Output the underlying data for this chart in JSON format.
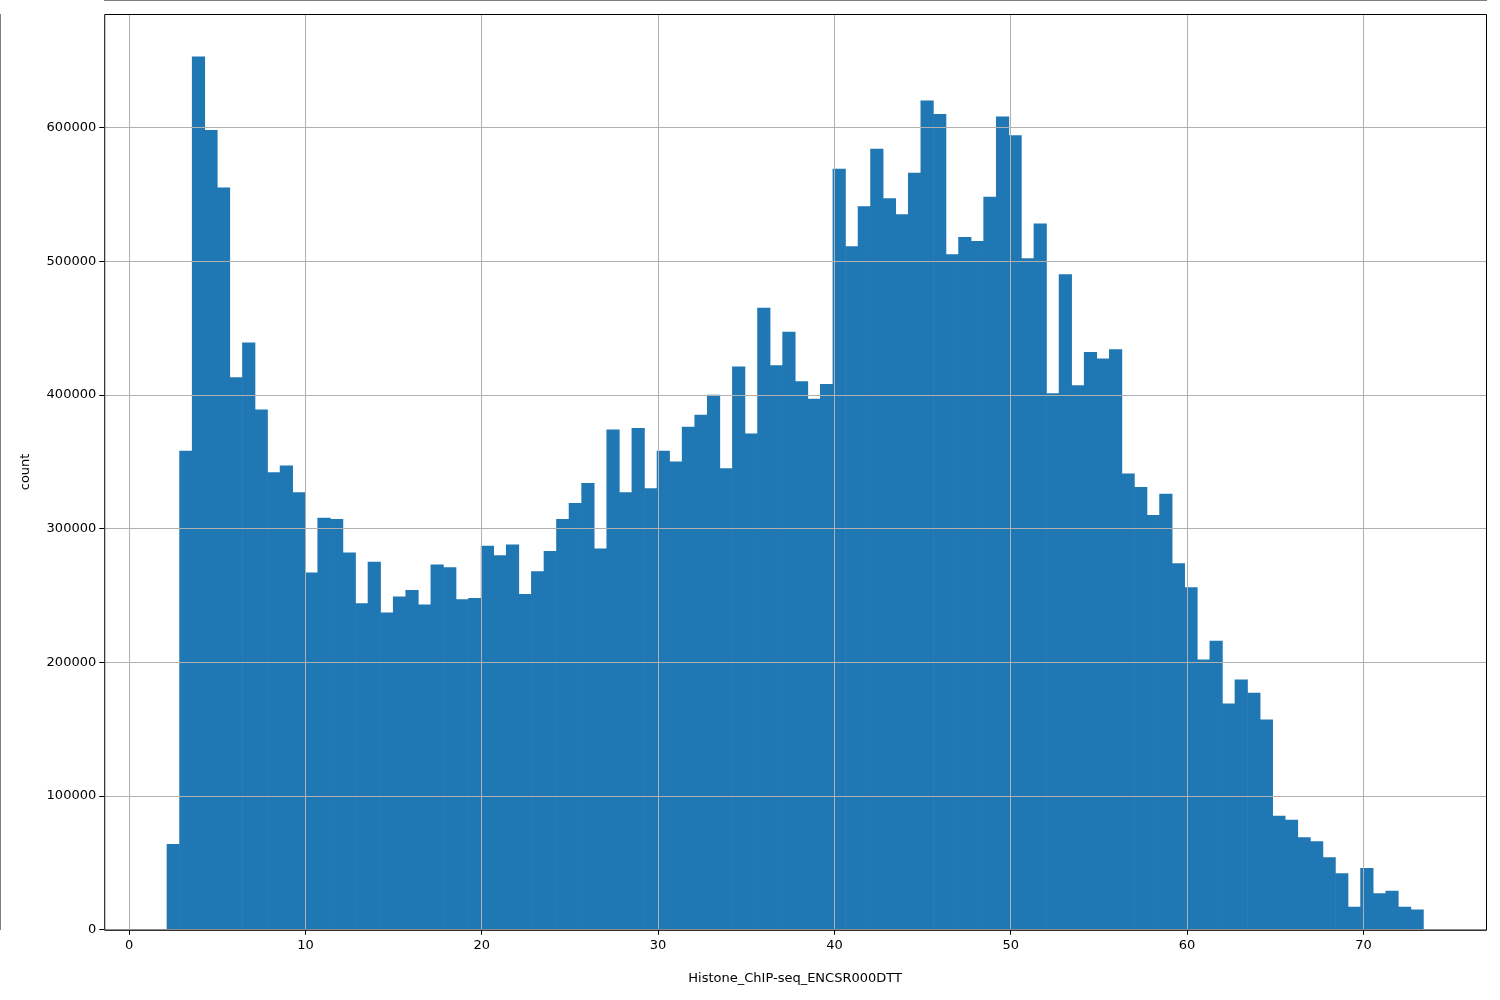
{
  "chart_data": {
    "type": "histogram",
    "xlabel": "Histone_ChIP-seq_ENCSR000DTT",
    "ylabel": "count",
    "color": "#1f77b4",
    "bins": [
      2.15,
      2.86,
      3.58,
      4.29,
      5.0,
      5.71,
      6.43,
      7.14,
      7.85,
      8.56,
      9.28,
      9.99,
      10.7,
      11.41,
      12.13,
      12.84,
      13.55,
      14.26,
      14.98,
      15.69,
      16.4,
      17.11,
      17.83,
      18.54,
      19.25,
      19.96,
      20.68,
      21.39,
      22.1,
      22.81,
      23.53,
      24.24,
      24.95,
      25.66,
      26.38,
      27.09,
      27.8,
      28.51,
      29.23,
      29.94,
      30.65,
      31.36,
      32.08,
      32.79,
      33.5,
      34.21,
      34.93,
      35.64,
      36.35,
      37.06,
      37.78,
      38.49,
      39.2,
      39.91,
      40.63,
      41.34,
      42.05,
      42.76,
      43.48,
      44.19,
      44.9,
      45.61,
      46.33,
      47.04,
      47.75,
      48.46,
      49.18,
      49.89,
      50.6,
      51.31,
      52.03,
      52.74,
      53.45,
      54.16,
      54.88,
      55.59,
      56.3,
      57.01,
      57.73,
      58.44,
      59.15,
      59.86,
      60.58,
      61.29,
      62.0,
      62.71,
      63.43,
      64.14,
      64.85,
      65.56,
      66.28,
      66.99,
      67.7,
      68.41,
      69.13,
      69.84,
      70.55,
      71.26,
      71.98,
      72.69,
      73.4
    ],
    "values": [
      64000,
      358000,
      653000,
      598000,
      555000,
      413000,
      439000,
      389000,
      342000,
      347000,
      327000,
      267000,
      308000,
      307000,
      282000,
      244000,
      275000,
      237000,
      249000,
      254000,
      243000,
      273000,
      271000,
      247000,
      248000,
      287000,
      280000,
      288000,
      251000,
      268000,
      283000,
      307000,
      319000,
      334000,
      285000,
      374000,
      327000,
      375000,
      330000,
      358000,
      350000,
      376000,
      385000,
      400000,
      345000,
      421000,
      371000,
      465000,
      422000,
      447000,
      410000,
      397000,
      408000,
      569000,
      511000,
      541000,
      584000,
      547000,
      535000,
      566000,
      620000,
      610000,
      505000,
      518000,
      515000,
      548000,
      608000,
      594000,
      502000,
      528000,
      401000,
      490000,
      407000,
      432000,
      427000,
      434000,
      341000,
      331000,
      310000,
      326000,
      274000,
      256000,
      202000,
      216000,
      169000,
      187000,
      177000,
      157000,
      85000,
      82000,
      69000,
      66000,
      54000,
      42000,
      17000,
      46000,
      27000,
      29000,
      17000,
      15000
    ],
    "xlim": [
      -1.41,
      76.95
    ],
    "ylim": [
      0,
      685000
    ],
    "xticks": [
      0,
      10,
      20,
      30,
      40,
      50,
      60,
      70
    ],
    "yticks": [
      0,
      100000,
      200000,
      300000,
      400000,
      500000,
      600000
    ],
    "grid": true
  }
}
